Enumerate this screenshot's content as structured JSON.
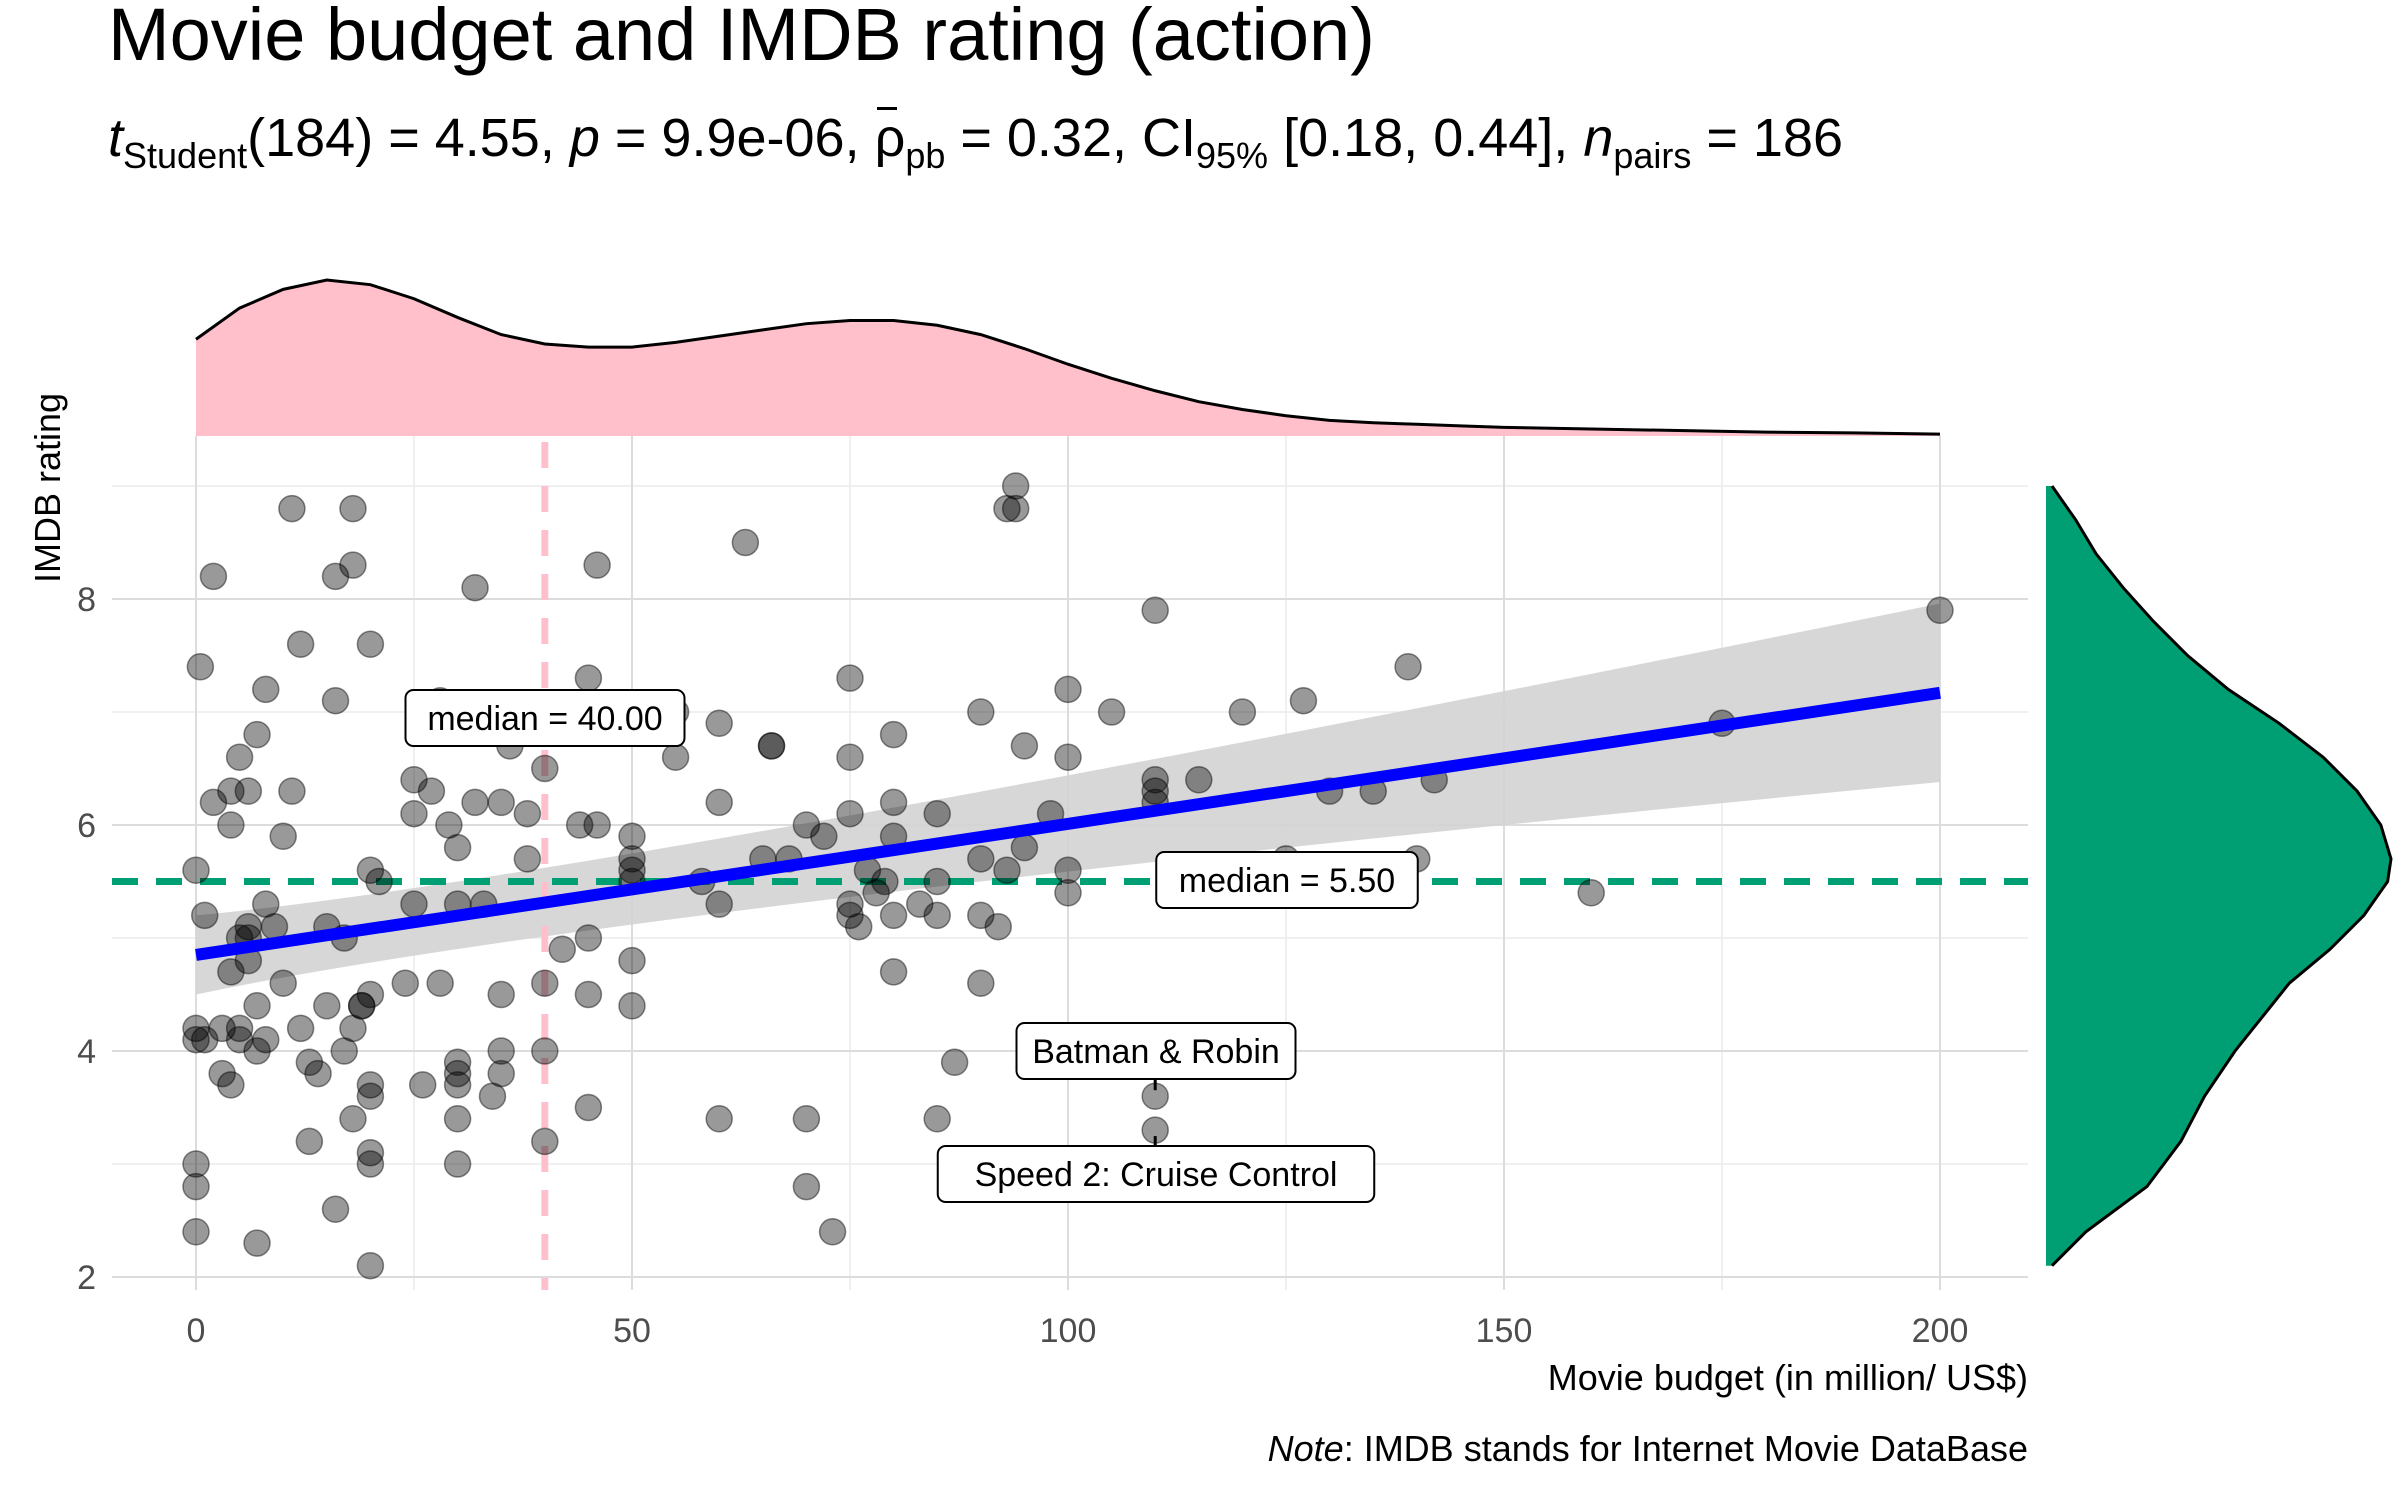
{
  "chart_data": {
    "type": "scatter",
    "title": "Movie budget and IMDB rating (action)",
    "subtitle": {
      "stat_name": "t",
      "stat_sub": "Student",
      "df": "(184) = 4.55, ",
      "p_name": "p",
      "p_value": " = 9.9e-06, ",
      "effect_name": "ρ",
      "effect_sub": "pb",
      "effect_value": " = 0.32, CI",
      "ci_sub": "95%",
      "ci_value": " [0.18, 0.44], ",
      "n_name": "n",
      "n_sub": "pairs",
      "n_value": " = 186"
    },
    "xlabel": "Movie budget (in million/ US$)",
    "ylabel": "IMDB rating",
    "xlim": [
      -10,
      210
    ],
    "ylim": [
      1.8,
      9.3
    ],
    "xticks": [
      0,
      50,
      100,
      150,
      200
    ],
    "yticks": [
      2,
      4,
      6,
      8
    ],
    "grid": true,
    "caption_italic": "Note",
    "caption_rest": ": IMDB stands for Internet Movie DataBase",
    "colors": {
      "points": "#000000",
      "regression_line": "#0000ff",
      "confidence_band": "#d3d3d3",
      "x_marginal": "#ffc0cb",
      "y_marginal": "#009e73",
      "x_median_line": "#ffc0cb",
      "y_median_line": "#009e73"
    },
    "regression": {
      "x": [
        0,
        200
      ],
      "y": [
        4.85,
        7.17
      ],
      "ci_lower": [
        4.5,
        6.38
      ],
      "ci_upper": [
        5.2,
        7.96
      ],
      "ci_mid_x": 45,
      "ci_mid_lower": 5.29,
      "ci_mid_upper": 5.47
    },
    "x_median": {
      "value": 40.0,
      "label": "median = 40.00"
    },
    "y_median": {
      "value": 5.5,
      "label": "median = 5.50"
    },
    "labelled_points": [
      {
        "label": "Batman & Robin",
        "x": 110,
        "y": 3.6
      },
      {
        "label": "Speed 2: Cruise Control",
        "x": 110,
        "y": 3.3
      }
    ],
    "points": [
      [
        0,
        2.4
      ],
      [
        0,
        2.8
      ],
      [
        0,
        3.0
      ],
      [
        0,
        4.1
      ],
      [
        0,
        4.2
      ],
      [
        0,
        5.6
      ],
      [
        1,
        4.1
      ],
      [
        1,
        5.2
      ],
      [
        0.5,
        7.4
      ],
      [
        2,
        8.2
      ],
      [
        2,
        6.2
      ],
      [
        3,
        3.8
      ],
      [
        3,
        4.2
      ],
      [
        4,
        3.7
      ],
      [
        4,
        4.7
      ],
      [
        4,
        6.0
      ],
      [
        4,
        6.3
      ],
      [
        5,
        4.2
      ],
      [
        5,
        5.0
      ],
      [
        5,
        6.6
      ],
      [
        5,
        4.1
      ],
      [
        6,
        4.8
      ],
      [
        6,
        5.1
      ],
      [
        6,
        6.3
      ],
      [
        6,
        5.0
      ],
      [
        7,
        2.3
      ],
      [
        7,
        4.0
      ],
      [
        7,
        4.4
      ],
      [
        7,
        6.8
      ],
      [
        8,
        5.3
      ],
      [
        8,
        7.2
      ],
      [
        8,
        4.1
      ],
      [
        9,
        5.1
      ],
      [
        10,
        5.9
      ],
      [
        10,
        4.6
      ],
      [
        11,
        6.3
      ],
      [
        11,
        8.8
      ],
      [
        12,
        4.2
      ],
      [
        12,
        7.6
      ],
      [
        13,
        3.2
      ],
      [
        13,
        3.9
      ],
      [
        14,
        3.8
      ],
      [
        15,
        5.1
      ],
      [
        15,
        4.4
      ],
      [
        16,
        2.6
      ],
      [
        16,
        7.1
      ],
      [
        16,
        8.2
      ],
      [
        17,
        4.0
      ],
      [
        17,
        5.0
      ],
      [
        18,
        3.4
      ],
      [
        18,
        4.2
      ],
      [
        18,
        8.8
      ],
      [
        18,
        8.3
      ],
      [
        19,
        4.4
      ],
      [
        19,
        4.4
      ],
      [
        20,
        3.6
      ],
      [
        20,
        3.7
      ],
      [
        20,
        3.1
      ],
      [
        20,
        3.0
      ],
      [
        20,
        2.1
      ],
      [
        20,
        5.6
      ],
      [
        20,
        7.6
      ],
      [
        20,
        4.5
      ],
      [
        21,
        5.5
      ],
      [
        24,
        4.6
      ],
      [
        25,
        5.3
      ],
      [
        25,
        6.1
      ],
      [
        25,
        6.4
      ],
      [
        26,
        3.7
      ],
      [
        27,
        6.3
      ],
      [
        28,
        4.6
      ],
      [
        28,
        7.1
      ],
      [
        29,
        6.0
      ],
      [
        30,
        3.8
      ],
      [
        30,
        3.7
      ],
      [
        30,
        3.0
      ],
      [
        30,
        3.4
      ],
      [
        30,
        3.9
      ],
      [
        30,
        5.3
      ],
      [
        30,
        5.8
      ],
      [
        32,
        8.1
      ],
      [
        32,
        6.2
      ],
      [
        33,
        5.3
      ],
      [
        34,
        3.6
      ],
      [
        35,
        4.0
      ],
      [
        35,
        3.8
      ],
      [
        35,
        4.5
      ],
      [
        35,
        6.2
      ],
      [
        36,
        6.7
      ],
      [
        38,
        6.1
      ],
      [
        38,
        5.7
      ],
      [
        40,
        3.2
      ],
      [
        40,
        4.0
      ],
      [
        40,
        4.6
      ],
      [
        40,
        6.5
      ],
      [
        42,
        4.9
      ],
      [
        44,
        6.0
      ],
      [
        45,
        7.3
      ],
      [
        45,
        5.0
      ],
      [
        45,
        4.5
      ],
      [
        45,
        3.5
      ],
      [
        46,
        8.3
      ],
      [
        46,
        6.0
      ],
      [
        50,
        5.9
      ],
      [
        50,
        5.7
      ],
      [
        50,
        5.6
      ],
      [
        50,
        4.8
      ],
      [
        50,
        4.4
      ],
      [
        50,
        5.5
      ],
      [
        55,
        7.0
      ],
      [
        55,
        6.6
      ],
      [
        58,
        5.5
      ],
      [
        60,
        6.9
      ],
      [
        60,
        5.3
      ],
      [
        60,
        6.2
      ],
      [
        60,
        3.4
      ],
      [
        63,
        8.5
      ],
      [
        65,
        5.7
      ],
      [
        66,
        6.7
      ],
      [
        66,
        6.7
      ],
      [
        68,
        5.7
      ],
      [
        70,
        6.0
      ],
      [
        70,
        3.4
      ],
      [
        70,
        2.8
      ],
      [
        72,
        5.9
      ],
      [
        73,
        2.4
      ],
      [
        75,
        7.3
      ],
      [
        75,
        6.6
      ],
      [
        75,
        6.1
      ],
      [
        75,
        5.3
      ],
      [
        75,
        5.2
      ],
      [
        76,
        5.1
      ],
      [
        77,
        5.6
      ],
      [
        78,
        5.4
      ],
      [
        79,
        5.5
      ],
      [
        80,
        6.8
      ],
      [
        80,
        6.2
      ],
      [
        80,
        5.9
      ],
      [
        80,
        5.2
      ],
      [
        80,
        4.7
      ],
      [
        83,
        5.3
      ],
      [
        85,
        6.1
      ],
      [
        85,
        5.5
      ],
      [
        85,
        5.2
      ],
      [
        85,
        3.4
      ],
      [
        87,
        3.9
      ],
      [
        90,
        7.0
      ],
      [
        90,
        5.7
      ],
      [
        90,
        5.2
      ],
      [
        90,
        4.6
      ],
      [
        92,
        5.1
      ],
      [
        93,
        5.6
      ],
      [
        93,
        8.8
      ],
      [
        94,
        9.0
      ],
      [
        94,
        8.8
      ],
      [
        95,
        6.7
      ],
      [
        95,
        5.8
      ],
      [
        98,
        6.1
      ],
      [
        100,
        7.2
      ],
      [
        100,
        6.6
      ],
      [
        100,
        5.6
      ],
      [
        100,
        5.4
      ],
      [
        105,
        7.0
      ],
      [
        110,
        7.9
      ],
      [
        110,
        6.4
      ],
      [
        110,
        6.3
      ],
      [
        110,
        6.2
      ],
      [
        110,
        3.6
      ],
      [
        110,
        3.3
      ],
      [
        115,
        6.4
      ],
      [
        120,
        7.0
      ],
      [
        125,
        5.7
      ],
      [
        127,
        7.1
      ],
      [
        130,
        6.3
      ],
      [
        135,
        6.3
      ],
      [
        139,
        7.4
      ],
      [
        140,
        5.7
      ],
      [
        142,
        6.4
      ],
      [
        160,
        5.4
      ],
      [
        175,
        6.9
      ],
      [
        200,
        7.9
      ]
    ],
    "x_density": [
      [
        0,
        0.62
      ],
      [
        5,
        0.82
      ],
      [
        10,
        0.94
      ],
      [
        15,
        1.0
      ],
      [
        20,
        0.97
      ],
      [
        25,
        0.88
      ],
      [
        30,
        0.76
      ],
      [
        35,
        0.65
      ],
      [
        40,
        0.59
      ],
      [
        45,
        0.57
      ],
      [
        50,
        0.57
      ],
      [
        55,
        0.6
      ],
      [
        60,
        0.64
      ],
      [
        65,
        0.68
      ],
      [
        70,
        0.72
      ],
      [
        75,
        0.74
      ],
      [
        80,
        0.74
      ],
      [
        85,
        0.71
      ],
      [
        90,
        0.65
      ],
      [
        95,
        0.56
      ],
      [
        100,
        0.46
      ],
      [
        105,
        0.37
      ],
      [
        110,
        0.29
      ],
      [
        115,
        0.22
      ],
      [
        120,
        0.17
      ],
      [
        125,
        0.13
      ],
      [
        130,
        0.1
      ],
      [
        135,
        0.085
      ],
      [
        140,
        0.075
      ],
      [
        145,
        0.065
      ],
      [
        150,
        0.055
      ],
      [
        160,
        0.045
      ],
      [
        170,
        0.035
      ],
      [
        180,
        0.025
      ],
      [
        190,
        0.02
      ],
      [
        200,
        0.012
      ]
    ],
    "y_density": [
      [
        2.1,
        0.0
      ],
      [
        2.4,
        0.1
      ],
      [
        2.8,
        0.28
      ],
      [
        3.2,
        0.38
      ],
      [
        3.6,
        0.45
      ],
      [
        4.0,
        0.54
      ],
      [
        4.3,
        0.62
      ],
      [
        4.6,
        0.7
      ],
      [
        4.9,
        0.82
      ],
      [
        5.2,
        0.92
      ],
      [
        5.5,
        0.99
      ],
      [
        5.7,
        1.0
      ],
      [
        6.0,
        0.97
      ],
      [
        6.3,
        0.9
      ],
      [
        6.6,
        0.8
      ],
      [
        6.9,
        0.67
      ],
      [
        7.2,
        0.52
      ],
      [
        7.5,
        0.4
      ],
      [
        7.8,
        0.3
      ],
      [
        8.1,
        0.21
      ],
      [
        8.4,
        0.13
      ],
      [
        8.7,
        0.07
      ],
      [
        9.0,
        0.0
      ]
    ]
  }
}
